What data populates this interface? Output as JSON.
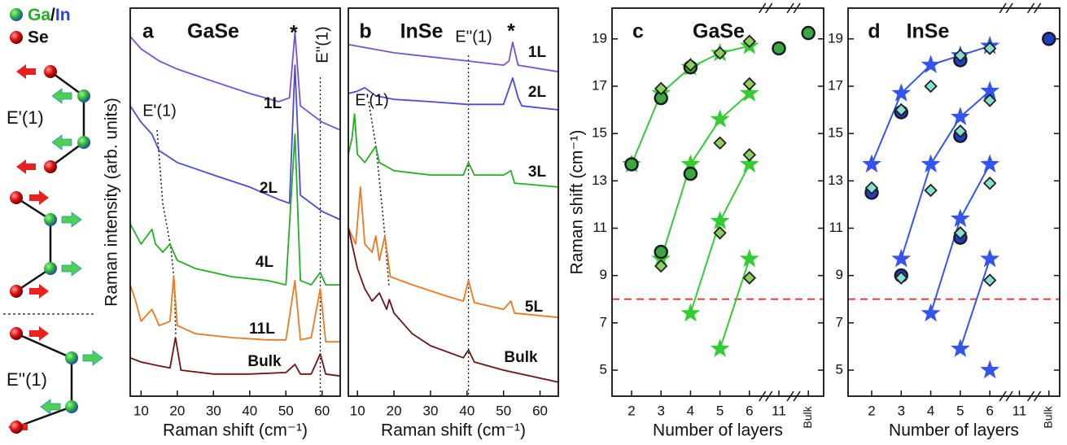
{
  "schematic": {
    "legend": [
      "Ga",
      "/",
      "In",
      "Se"
    ],
    "modes": [
      "E'(1)",
      "E''(1)"
    ]
  },
  "chart_data": [
    {
      "type": "line",
      "panel_label": "a",
      "title": "GaSe",
      "title_color": "#2db52d",
      "xlabel": "Raman shift (cm⁻¹)",
      "ylabel": "Raman intensity (arb. units)",
      "xlim": [
        7,
        65
      ],
      "ylim": [
        0,
        100
      ],
      "xticks": [
        10,
        20,
        30,
        40,
        50,
        60
      ],
      "vline": 59.5,
      "annotations": [
        "*",
        "E''(1)",
        "E'(1)"
      ],
      "series": [
        {
          "name": "1L",
          "color": "#7a4fd6",
          "x": [
            7,
            10,
            15,
            20,
            30,
            40,
            48,
            51,
            52.5,
            54,
            57,
            60,
            65
          ],
          "values": [
            92.7,
            89.5,
            86.4,
            84.3,
            81.1,
            78.0,
            75.9,
            76.9,
            93.7,
            74.8,
            72.7,
            70.6,
            68.6
          ]
        },
        {
          "name": "2L",
          "color": "#4a4ae0",
          "x": [
            7,
            10,
            13,
            15,
            20,
            30,
            40,
            48,
            51,
            52.5,
            54,
            57,
            60,
            65
          ],
          "values": [
            74.8,
            70.6,
            67.5,
            63.3,
            60.2,
            57.0,
            53.9,
            50.7,
            49.7,
            85.3,
            51.8,
            49.7,
            47.6,
            45.5
          ]
        },
        {
          "name": "4L",
          "color": "#22b022",
          "x": [
            7,
            10,
            13,
            14,
            16,
            18,
            20,
            25,
            35,
            45,
            50,
            52.5,
            54,
            57,
            59.5,
            61,
            65
          ],
          "values": [
            44.4,
            39.2,
            43.0,
            39.2,
            37.1,
            39.2,
            35.0,
            32.9,
            30.8,
            29.8,
            28.7,
            67.5,
            29.8,
            28.7,
            31.9,
            28.7,
            28.7
          ]
        },
        {
          "name": "11L",
          "color": "#f07820",
          "x": [
            7,
            8.5,
            10,
            13,
            15,
            18,
            19,
            20,
            25,
            35,
            45,
            50,
            52.5,
            54,
            57,
            59.5,
            61,
            65
          ],
          "values": [
            28.7,
            24.5,
            19.3,
            22.4,
            18.2,
            19.3,
            30.8,
            18.2,
            16.1,
            15.1,
            14.5,
            14.5,
            29.8,
            14.5,
            15.1,
            27.7,
            14.0,
            14.0
          ]
        },
        {
          "name": "Bulk",
          "color": "#6e1414",
          "x": [
            7,
            10,
            15,
            18,
            19.5,
            21,
            30,
            40,
            50,
            52.5,
            54,
            57,
            59.5,
            61,
            65
          ],
          "values": [
            9.9,
            8.8,
            7.8,
            7.3,
            15.1,
            6.7,
            5.7,
            5.7,
            6.1,
            8.2,
            5.7,
            5.7,
            10.9,
            5.7,
            5.2
          ]
        }
      ]
    },
    {
      "type": "line",
      "panel_label": "b",
      "title": "InSe",
      "title_color": "#3b4fe0",
      "xlabel": "Raman shift (cm⁻¹)",
      "xlim": [
        7.5,
        65
      ],
      "ylim": [
        0,
        100
      ],
      "xticks": [
        10,
        20,
        30,
        40,
        50,
        60
      ],
      "vline": 40.4,
      "annotations": [
        "E''(1)",
        "*",
        "E'(1)"
      ],
      "series": [
        {
          "name": "1L",
          "color": "#7a4fd6",
          "x": [
            7.5,
            20,
            40,
            50,
            51.5,
            52.5,
            54,
            65
          ],
          "values": [
            90.6,
            88.5,
            86.4,
            85.3,
            86.4,
            91.2,
            85.3,
            83.6
          ]
        },
        {
          "name": "2L",
          "color": "#4a4ae0",
          "x": [
            7.5,
            10,
            12,
            15,
            20,
            30,
            40,
            50,
            52.5,
            54,
            55,
            65
          ],
          "values": [
            78.0,
            78.6,
            79.5,
            77.4,
            76.5,
            75.9,
            75.2,
            75.2,
            82.0,
            76.9,
            74.8,
            73.8
          ]
        },
        {
          "name": "3L",
          "color": "#22b022",
          "x": [
            7.5,
            8.5,
            9.2,
            10,
            12,
            15,
            16,
            20,
            30,
            39,
            40.4,
            42,
            50,
            52,
            53,
            65
          ],
          "values": [
            62.3,
            66.5,
            72.7,
            62.3,
            60.2,
            64.4,
            60.2,
            58.1,
            57.0,
            57.0,
            60.2,
            57.0,
            57.0,
            58.1,
            54.9,
            53.9
          ]
        },
        {
          "name": "5L",
          "color": "#f07820",
          "x": [
            7.5,
            9.5,
            10.8,
            12,
            14,
            15,
            16,
            17.5,
            19,
            25,
            35,
            39,
            40.4,
            42,
            50,
            52,
            53,
            65
          ],
          "values": [
            43.4,
            39.2,
            53.9,
            39.2,
            37.1,
            41.3,
            35.0,
            41.3,
            30.8,
            28.7,
            25.6,
            24.5,
            29.8,
            24.1,
            22.4,
            24.5,
            21.4,
            20.3
          ]
        },
        {
          "name": "Bulk",
          "color": "#6e1414",
          "x": [
            7.5,
            10,
            12,
            14,
            16,
            18,
            18.7,
            20,
            25,
            30,
            39,
            40.4,
            42,
            50,
            65
          ],
          "values": [
            43.4,
            32.9,
            27.7,
            24.5,
            26.6,
            22.4,
            24.9,
            21.4,
            16.1,
            13.0,
            9.9,
            11.9,
            8.8,
            6.7,
            3.6
          ]
        }
      ]
    },
    {
      "type": "scatter",
      "panel_label": "c",
      "title": "GaSe",
      "title_color": "#2db52d",
      "xlabel": "Number of layers",
      "ylabel": "Raman shift (cm⁻¹)",
      "categories": [
        "2",
        "3",
        "4",
        "5",
        "6",
        "11",
        "Bulk"
      ],
      "ylim": [
        3.9,
        20.3
      ],
      "yticks": [
        5,
        7,
        9,
        11,
        13,
        15,
        17,
        19
      ],
      "reference_line": {
        "value": 8,
        "color": "#e8413c"
      },
      "series": [
        {
          "marker": "star",
          "line": true,
          "color": "#33cc33",
          "x": [
            "2",
            "3",
            "4",
            "5",
            "6"
          ],
          "values": [
            13.7,
            16.7,
            17.8,
            18.4,
            18.7
          ]
        },
        {
          "marker": "star",
          "line": true,
          "color": "#33cc33",
          "x": [
            "3",
            "4",
            "5",
            "6"
          ],
          "values": [
            9.7,
            13.7,
            15.6,
            16.7
          ]
        },
        {
          "marker": "star",
          "line": true,
          "color": "#33cc33",
          "x": [
            "4",
            "5",
            "6"
          ],
          "values": [
            7.4,
            11.3,
            13.7
          ]
        },
        {
          "marker": "star",
          "line": true,
          "color": "#33cc33",
          "x": [
            "5",
            "6"
          ],
          "values": [
            5.9,
            9.7
          ]
        },
        {
          "marker": "circle",
          "color": "#3aa83a",
          "x": [
            "2",
            "3",
            "3",
            "4",
            "4",
            "11",
            "Bulk"
          ],
          "values": [
            13.7,
            16.5,
            10.0,
            17.8,
            13.3,
            18.6,
            19.25
          ]
        },
        {
          "marker": "diamond",
          "color": "#8fcf5f",
          "x": [
            "3",
            "3",
            "4",
            "5",
            "5",
            "5",
            "6",
            "6",
            "6",
            "6"
          ],
          "values": [
            16.9,
            9.4,
            17.9,
            18.4,
            14.6,
            10.8,
            18.9,
            17.1,
            14.1,
            8.9
          ]
        }
      ]
    },
    {
      "type": "scatter",
      "panel_label": "d",
      "title": "InSe",
      "title_color": "#3b4fe0",
      "xlabel": "Number of layers",
      "categories": [
        "2",
        "3",
        "4",
        "5",
        "6",
        "11",
        "Bulk"
      ],
      "ylim": [
        3.9,
        20.3
      ],
      "yticks": [
        5,
        7,
        9,
        11,
        13,
        15,
        17,
        19
      ],
      "reference_line": {
        "value": 8,
        "color": "#e8413c"
      },
      "series": [
        {
          "marker": "star",
          "line": true,
          "color": "#3355ee",
          "x": [
            "2",
            "3",
            "4",
            "5",
            "6"
          ],
          "values": [
            13.7,
            16.7,
            17.9,
            18.3,
            18.7
          ]
        },
        {
          "marker": "star",
          "line": true,
          "color": "#3355ee",
          "x": [
            "3",
            "4",
            "5",
            "6"
          ],
          "values": [
            9.7,
            13.7,
            15.7,
            16.8
          ]
        },
        {
          "marker": "star",
          "line": true,
          "color": "#3355ee",
          "x": [
            "4",
            "5",
            "6"
          ],
          "values": [
            7.4,
            11.4,
            13.7
          ]
        },
        {
          "marker": "star",
          "line": true,
          "color": "#3355ee",
          "x": [
            "5",
            "6"
          ],
          "values": [
            5.9,
            9.7
          ]
        },
        {
          "marker": "star",
          "line": true,
          "color": "#3355ee",
          "x": [
            "6"
          ],
          "values": [
            5.0
          ]
        },
        {
          "marker": "circle",
          "color": "#1f3fbf",
          "x": [
            "2",
            "3",
            "3",
            "5",
            "5",
            "5",
            "Bulk"
          ],
          "values": [
            12.5,
            15.9,
            9.0,
            18.1,
            14.9,
            10.6,
            19.0
          ]
        },
        {
          "marker": "diamond",
          "color": "#86e0cf",
          "x": [
            "2",
            "3",
            "3",
            "4",
            "4",
            "5",
            "5",
            "5",
            "6",
            "6",
            "6",
            "6"
          ],
          "values": [
            12.7,
            16.0,
            8.9,
            17.0,
            12.6,
            18.3,
            15.1,
            10.8,
            18.6,
            16.4,
            12.9,
            8.8
          ]
        }
      ]
    }
  ]
}
